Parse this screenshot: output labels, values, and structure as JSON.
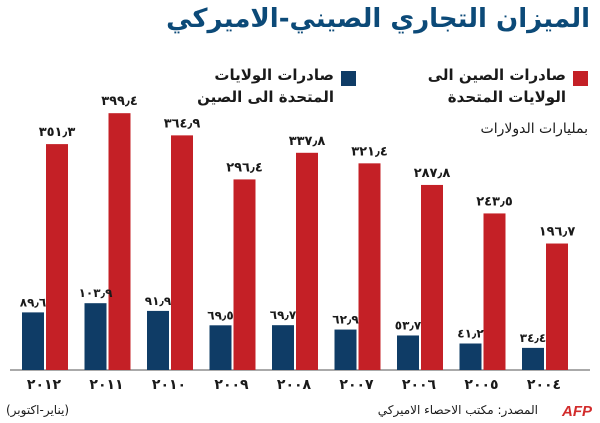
{
  "colors": {
    "red": "#c42026",
    "blue": "#0f3c66",
    "title": "#0c4a78"
  },
  "source_label": "المصدر: مكتب الاحصاء الاميركي",
  "logo_text": "AFP",
  "chart_data": {
    "type": "bar",
    "title": "الميزان التجاري الصيني-الاميركي",
    "ylabel": "بمليارات الدولارات",
    "categories": [
      "٢٠٠٤",
      "٢٠٠٥",
      "٢٠٠٦",
      "٢٠٠٧",
      "٢٠٠٨",
      "٢٠٠٩",
      "٢٠١٠",
      "٢٠١١",
      "٢٠١٢"
    ],
    "category_note": "(يناير-اكتوبر)",
    "series": [
      {
        "name": "صادرات الصين الى الولايات المتحدة",
        "values": [
          196.7,
          243.5,
          287.8,
          321.4,
          337.8,
          296.4,
          364.9,
          399.4,
          351.3
        ],
        "labels": [
          "١٩٦٫٧",
          "٢٤٣٫٥",
          "٢٨٧٫٨",
          "٣٢١٫٤",
          "٣٣٧٫٨",
          "٢٩٦٫٤",
          "٣٦٤٫٩",
          "٣٩٩٫٤",
          "٣٥١٫٣"
        ]
      },
      {
        "name": "صادرات الولايات المتحدة الى الصين",
        "values": [
          34.4,
          41.2,
          53.7,
          62.9,
          69.7,
          69.5,
          91.9,
          103.9,
          89.6
        ],
        "labels": [
          "٣٤٫٤",
          "٤١٫٢",
          "٥٣٫٧",
          "٦٢٫٩",
          "٦٩٫٧",
          "٦٩٫٥",
          "٩١٫٩",
          "١٠٣٫٩",
          "٨٩٫٦"
        ]
      }
    ],
    "ylim": [
      0,
      400
    ]
  }
}
